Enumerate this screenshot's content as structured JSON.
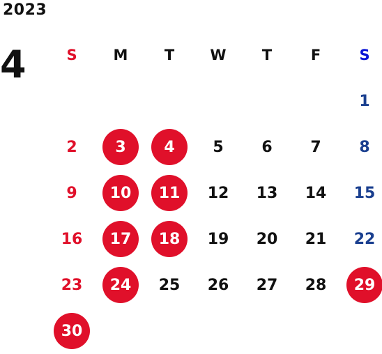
{
  "year": "2023",
  "month": "4",
  "colors": {
    "sunday": "#e0102a",
    "saturday": "#1a3f8f",
    "saturday_header": "#0a14d6",
    "highlight_bg": "#e0102a",
    "highlight_text": "#ffffff",
    "weekday": "#111111"
  },
  "weekdays": [
    "S",
    "M",
    "T",
    "W",
    "T",
    "F",
    "S"
  ],
  "weeks": [
    [
      null,
      null,
      null,
      null,
      null,
      null,
      {
        "day": "1",
        "highlight": false
      }
    ],
    [
      {
        "day": "2",
        "highlight": false
      },
      {
        "day": "3",
        "highlight": true
      },
      {
        "day": "4",
        "highlight": true
      },
      {
        "day": "5",
        "highlight": false
      },
      {
        "day": "6",
        "highlight": false
      },
      {
        "day": "7",
        "highlight": false
      },
      {
        "day": "8",
        "highlight": false
      }
    ],
    [
      {
        "day": "9",
        "highlight": false
      },
      {
        "day": "10",
        "highlight": true
      },
      {
        "day": "11",
        "highlight": true
      },
      {
        "day": "12",
        "highlight": false
      },
      {
        "day": "13",
        "highlight": false
      },
      {
        "day": "14",
        "highlight": false
      },
      {
        "day": "15",
        "highlight": false
      }
    ],
    [
      {
        "day": "16",
        "highlight": false
      },
      {
        "day": "17",
        "highlight": true
      },
      {
        "day": "18",
        "highlight": true
      },
      {
        "day": "19",
        "highlight": false
      },
      {
        "day": "20",
        "highlight": false
      },
      {
        "day": "21",
        "highlight": false
      },
      {
        "day": "22",
        "highlight": false
      }
    ],
    [
      {
        "day": "23",
        "highlight": false
      },
      {
        "day": "24",
        "highlight": true
      },
      {
        "day": "25",
        "highlight": false
      },
      {
        "day": "26",
        "highlight": false
      },
      {
        "day": "27",
        "highlight": false
      },
      {
        "day": "28",
        "highlight": false
      },
      {
        "day": "29",
        "highlight": true
      }
    ],
    [
      {
        "day": "30",
        "highlight": true
      },
      null,
      null,
      null,
      null,
      null,
      null
    ]
  ]
}
